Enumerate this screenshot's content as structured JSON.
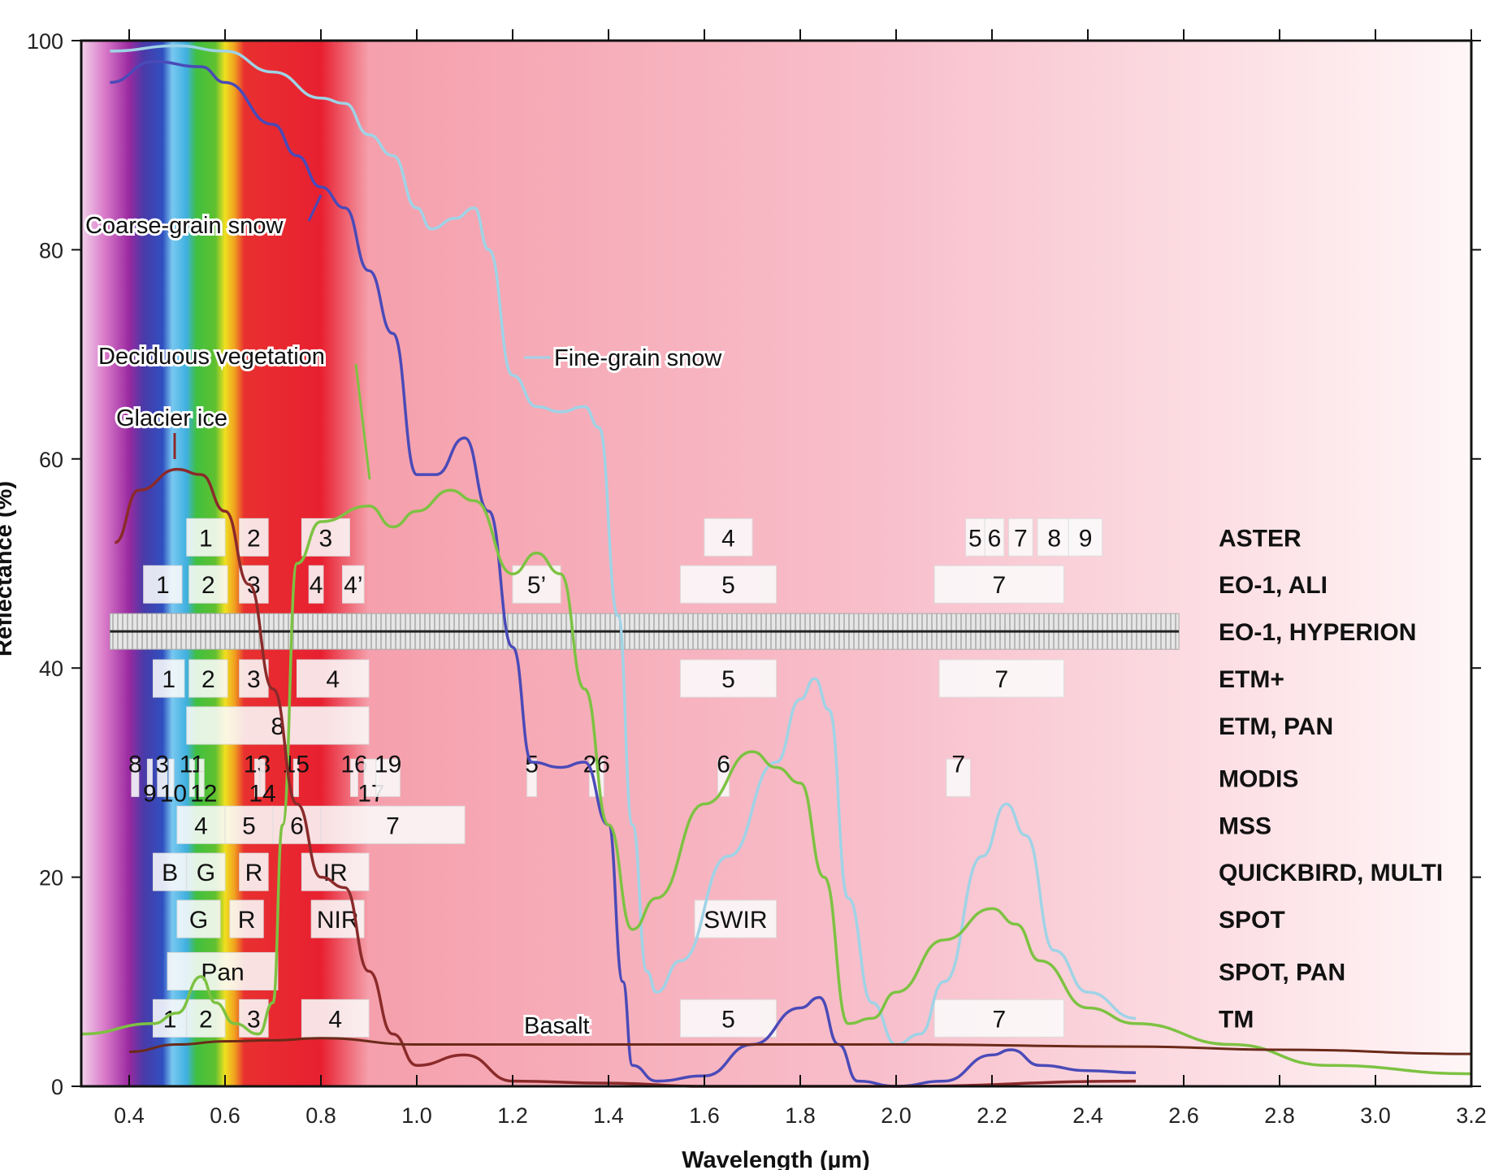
{
  "chart_data": {
    "type": "line",
    "xlabel": "Wavelength (µm)",
    "ylabel": "Reflectance (%)",
    "xlim": [
      0.3,
      3.2
    ],
    "ylim": [
      0,
      100
    ],
    "xticks": [
      "0.4",
      "0.6",
      "0.8",
      "1.0",
      "1.2",
      "1.4",
      "1.6",
      "1.8",
      "2.0",
      "2.2",
      "2.4",
      "2.6",
      "2.8",
      "3.0",
      "3.2"
    ],
    "yticks": [
      "0",
      "20",
      "40",
      "60",
      "80",
      "100"
    ],
    "grid": false,
    "series": [
      {
        "name": "Fine-grain snow",
        "color": "#9fd3e6",
        "points": [
          [
            0.36,
            99
          ],
          [
            0.5,
            99.5
          ],
          [
            0.6,
            99
          ],
          [
            0.7,
            97
          ],
          [
            0.8,
            94.5
          ],
          [
            0.85,
            94
          ],
          [
            0.9,
            91
          ],
          [
            0.95,
            89
          ],
          [
            1.0,
            84
          ],
          [
            1.03,
            82
          ],
          [
            1.08,
            83
          ],
          [
            1.12,
            84
          ],
          [
            1.15,
            80
          ],
          [
            1.2,
            68
          ],
          [
            1.25,
            65
          ],
          [
            1.3,
            64.5
          ],
          [
            1.35,
            65
          ],
          [
            1.38,
            63
          ],
          [
            1.42,
            45
          ],
          [
            1.45,
            25
          ],
          [
            1.48,
            11
          ],
          [
            1.5,
            9
          ],
          [
            1.55,
            12
          ],
          [
            1.65,
            22
          ],
          [
            1.75,
            31
          ],
          [
            1.8,
            37
          ],
          [
            1.83,
            39
          ],
          [
            1.86,
            36
          ],
          [
            1.9,
            18
          ],
          [
            1.95,
            8
          ],
          [
            2.0,
            4
          ],
          [
            2.05,
            5
          ],
          [
            2.1,
            10
          ],
          [
            2.18,
            22
          ],
          [
            2.23,
            27
          ],
          [
            2.27,
            24
          ],
          [
            2.33,
            13
          ],
          [
            2.4,
            9
          ],
          [
            2.5,
            6.5
          ]
        ]
      },
      {
        "name": "Coarse-grain snow",
        "color": "#4a4ab8",
        "points": [
          [
            0.36,
            96
          ],
          [
            0.45,
            98
          ],
          [
            0.55,
            97.5
          ],
          [
            0.6,
            96
          ],
          [
            0.7,
            92
          ],
          [
            0.75,
            89
          ],
          [
            0.8,
            86
          ],
          [
            0.85,
            84
          ],
          [
            0.9,
            78
          ],
          [
            0.95,
            72
          ],
          [
            1.0,
            58.5
          ],
          [
            1.04,
            58.5
          ],
          [
            1.1,
            62
          ],
          [
            1.15,
            55
          ],
          [
            1.2,
            42
          ],
          [
            1.24,
            31
          ],
          [
            1.3,
            30.5
          ],
          [
            1.35,
            31
          ],
          [
            1.4,
            25
          ],
          [
            1.43,
            10
          ],
          [
            1.45,
            2
          ],
          [
            1.5,
            0.5
          ],
          [
            1.6,
            1
          ],
          [
            1.7,
            4
          ],
          [
            1.8,
            7.5
          ],
          [
            1.84,
            8.5
          ],
          [
            1.88,
            4
          ],
          [
            1.92,
            0.5
          ],
          [
            2.0,
            0
          ],
          [
            2.1,
            0.5
          ],
          [
            2.2,
            3
          ],
          [
            2.24,
            3.5
          ],
          [
            2.3,
            2
          ],
          [
            2.4,
            1.5
          ],
          [
            2.5,
            1.3
          ]
        ]
      },
      {
        "name": "Deciduous vegetation",
        "color": "#7dc242",
        "points": [
          [
            0.3,
            5
          ],
          [
            0.45,
            6
          ],
          [
            0.5,
            7
          ],
          [
            0.55,
            10.5
          ],
          [
            0.58,
            8
          ],
          [
            0.62,
            6
          ],
          [
            0.67,
            5
          ],
          [
            0.7,
            8
          ],
          [
            0.72,
            25
          ],
          [
            0.75,
            50
          ],
          [
            0.8,
            54
          ],
          [
            0.9,
            55.5
          ],
          [
            0.95,
            53.5
          ],
          [
            1.0,
            55
          ],
          [
            1.07,
            57
          ],
          [
            1.12,
            56
          ],
          [
            1.2,
            49
          ],
          [
            1.25,
            51
          ],
          [
            1.3,
            49
          ],
          [
            1.35,
            38
          ],
          [
            1.4,
            25
          ],
          [
            1.45,
            15
          ],
          [
            1.5,
            18
          ],
          [
            1.6,
            27
          ],
          [
            1.7,
            32
          ],
          [
            1.75,
            30.5
          ],
          [
            1.8,
            29
          ],
          [
            1.85,
            20
          ],
          [
            1.9,
            6
          ],
          [
            1.95,
            6.5
          ],
          [
            2.0,
            9
          ],
          [
            2.1,
            14
          ],
          [
            2.2,
            17
          ],
          [
            2.25,
            15.5
          ],
          [
            2.3,
            12
          ],
          [
            2.4,
            7.5
          ],
          [
            2.5,
            6
          ],
          [
            2.7,
            4
          ],
          [
            2.9,
            2
          ],
          [
            3.2,
            1.2
          ]
        ]
      },
      {
        "name": "Glacier ice",
        "color": "#8b2a2a",
        "points": [
          [
            0.37,
            52
          ],
          [
            0.42,
            57
          ],
          [
            0.5,
            59
          ],
          [
            0.55,
            58.5
          ],
          [
            0.6,
            55
          ],
          [
            0.65,
            48
          ],
          [
            0.7,
            38
          ],
          [
            0.75,
            27
          ],
          [
            0.8,
            20
          ],
          [
            0.85,
            19
          ],
          [
            0.9,
            11
          ],
          [
            0.95,
            5
          ],
          [
            1.0,
            2
          ],
          [
            1.1,
            3
          ],
          [
            1.2,
            0.5
          ],
          [
            1.4,
            0.3
          ],
          [
            1.6,
            0
          ],
          [
            2.0,
            0
          ],
          [
            2.5,
            0.5
          ]
        ]
      },
      {
        "name": "Basalt",
        "color": "#6b2a1a",
        "points": [
          [
            0.4,
            3.3
          ],
          [
            0.5,
            4
          ],
          [
            0.6,
            4.3
          ],
          [
            0.7,
            4.4
          ],
          [
            0.8,
            4.6
          ],
          [
            1.0,
            4
          ],
          [
            1.5,
            4
          ],
          [
            2.0,
            4
          ],
          [
            2.5,
            3.8
          ],
          [
            2.8,
            3.5
          ],
          [
            3.2,
            3.1
          ]
        ]
      }
    ],
    "sensors": [
      {
        "name": "ASTER",
        "level": 52.5,
        "bands": [
          {
            "label": "1",
            "range": [
              0.52,
              0.6
            ]
          },
          {
            "label": "2",
            "range": [
              0.63,
              0.69
            ]
          },
          {
            "label": "3",
            "range": [
              0.76,
              0.86
            ]
          },
          {
            "label": "4",
            "range": [
              1.6,
              1.7
            ]
          },
          {
            "label": "5",
            "range": [
              2.145,
              2.185
            ]
          },
          {
            "label": "6",
            "range": [
              2.185,
              2.225
            ]
          },
          {
            "label": "7",
            "range": [
              2.235,
              2.285
            ]
          },
          {
            "label": "8",
            "range": [
              2.295,
              2.365
            ]
          },
          {
            "label": "9",
            "range": [
              2.36,
              2.43
            ]
          }
        ]
      },
      {
        "name": "EO-1, ALI",
        "level": 48,
        "bands": [
          {
            "label": "1",
            "range": [
              0.43,
              0.51
            ]
          },
          {
            "label": "2",
            "range": [
              0.525,
              0.605
            ]
          },
          {
            "label": "3",
            "range": [
              0.63,
              0.69
            ]
          },
          {
            "label": "4",
            "range": [
              0.775,
              0.805
            ]
          },
          {
            "label": "4’",
            "range": [
              0.845,
              0.89
            ]
          },
          {
            "label": "5’",
            "range": [
              1.2,
              1.3
            ]
          },
          {
            "label": "5",
            "range": [
              1.55,
              1.75
            ]
          },
          {
            "label": "7",
            "range": [
              2.08,
              2.35
            ]
          }
        ]
      },
      {
        "name": "EO-1, HYPERION",
        "level": 43.5,
        "bands": [
          {
            "label": "",
            "range": [
              0.36,
              2.59
            ]
          }
        ]
      },
      {
        "name": "ETM+",
        "level": 39,
        "bands": [
          {
            "label": "1",
            "range": [
              0.45,
              0.515
            ]
          },
          {
            "label": "2",
            "range": [
              0.525,
              0.605
            ]
          },
          {
            "label": "3",
            "range": [
              0.63,
              0.69
            ]
          },
          {
            "label": "4",
            "range": [
              0.75,
              0.9
            ]
          },
          {
            "label": "5",
            "range": [
              1.55,
              1.75
            ]
          },
          {
            "label": "7",
            "range": [
              2.09,
              2.35
            ]
          }
        ]
      },
      {
        "name": "ETM, PAN",
        "level": 34.5,
        "bands": [
          {
            "label": "8",
            "range": [
              0.52,
              0.9
            ]
          }
        ]
      },
      {
        "name": "MODIS",
        "level": 29.5,
        "bands": [
          {
            "label": "8",
            "range": [
              0.405,
              0.42
            ]
          },
          {
            "label": "9",
            "range": [
              0.438,
              0.448
            ]
          },
          {
            "label": "3",
            "range": [
              0.459,
              0.479
            ]
          },
          {
            "label": "10",
            "range": [
              0.483,
              0.493
            ]
          },
          {
            "label": "11",
            "range": [
              0.526,
              0.536
            ]
          },
          {
            "label": "12",
            "range": [
              0.546,
              0.556
            ]
          },
          {
            "label": "13",
            "range": [
              0.662,
              0.672
            ]
          },
          {
            "label": "14",
            "range": [
              0.673,
              0.683
            ]
          },
          {
            "label": "15",
            "range": [
              0.743,
              0.753
            ]
          },
          {
            "label": "16",
            "range": [
              0.862,
              0.877
            ]
          },
          {
            "label": "17",
            "range": [
              0.89,
              0.92
            ]
          },
          {
            "label": "19",
            "range": [
              0.915,
              0.965
            ]
          },
          {
            "label": "5",
            "range": [
              1.23,
              1.25
            ]
          },
          {
            "label": "26",
            "range": [
              1.36,
              1.39
            ]
          },
          {
            "label": "6",
            "range": [
              1.628,
              1.652
            ]
          },
          {
            "label": "7",
            "range": [
              2.105,
              2.155
            ]
          }
        ]
      },
      {
        "name": "MSS",
        "level": 25,
        "bands": [
          {
            "label": "4",
            "range": [
              0.5,
              0.6
            ]
          },
          {
            "label": "5",
            "range": [
              0.6,
              0.7
            ]
          },
          {
            "label": "6",
            "range": [
              0.7,
              0.8
            ]
          },
          {
            "label": "7",
            "range": [
              0.8,
              1.1
            ]
          }
        ]
      },
      {
        "name": "QUICKBIRD, MULTI",
        "level": 20.5,
        "bands": [
          {
            "label": "B",
            "range": [
              0.45,
              0.52
            ]
          },
          {
            "label": "G",
            "range": [
              0.52,
              0.6
            ]
          },
          {
            "label": "R",
            "range": [
              0.63,
              0.69
            ]
          },
          {
            "label": "IR",
            "range": [
              0.76,
              0.9
            ]
          }
        ]
      },
      {
        "name": "SPOT",
        "level": 16,
        "bands": [
          {
            "label": "G",
            "range": [
              0.5,
              0.59
            ]
          },
          {
            "label": "R",
            "range": [
              0.61,
              0.68
            ]
          },
          {
            "label": "NIR",
            "range": [
              0.78,
              0.89
            ]
          },
          {
            "label": "SWIR",
            "range": [
              1.58,
              1.75
            ]
          }
        ]
      },
      {
        "name": "SPOT, PAN",
        "level": 11,
        "bands": [
          {
            "label": "Pan",
            "range": [
              0.48,
              0.71
            ]
          }
        ]
      },
      {
        "name": "TM",
        "level": 6.5,
        "bands": [
          {
            "label": "1",
            "range": [
              0.45,
              0.52
            ]
          },
          {
            "label": "2",
            "range": [
              0.52,
              0.6
            ]
          },
          {
            "label": "3",
            "range": [
              0.63,
              0.69
            ]
          },
          {
            "label": "4",
            "range": [
              0.76,
              0.9
            ]
          },
          {
            "label": "5",
            "range": [
              1.55,
              1.75
            ]
          },
          {
            "label": "7",
            "range": [
              2.08,
              2.35
            ]
          }
        ]
      }
    ]
  }
}
